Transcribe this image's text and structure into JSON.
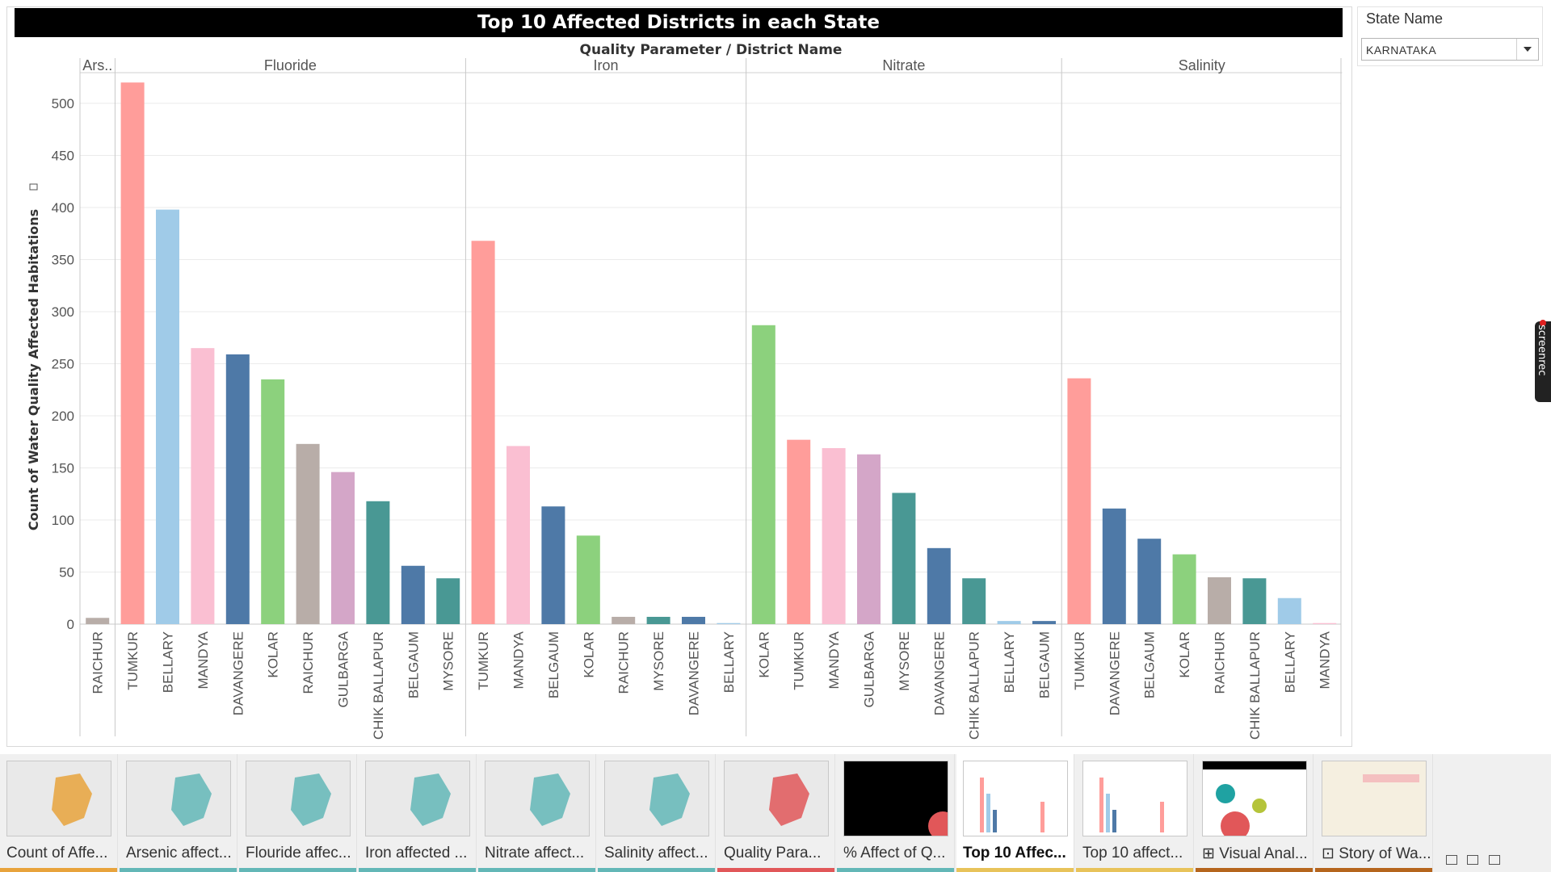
{
  "dashboard": {
    "title": "Top 10 Affected Districts in each State",
    "header_label": "Quality Parameter  /  District Name",
    "y_axis_label": "Count of Water Quality Affected Habitations",
    "filter_icon": "filter-icon"
  },
  "filter": {
    "title": "State Name",
    "selected": "KARNATAKA"
  },
  "chart_data": {
    "type": "bar",
    "title": "Top 10 Affected Districts in each State",
    "xlabel": "Quality Parameter  /  District Name",
    "ylabel": "Count of Water Quality Affected Habitations",
    "ylim": [
      0,
      540
    ],
    "yticks": [
      0,
      50,
      100,
      150,
      200,
      250,
      300,
      350,
      400,
      450,
      500
    ],
    "grid": true,
    "legend": "none",
    "panels": [
      {
        "name": "Ars..",
        "bars": [
          {
            "district": "RAICHUR",
            "value": 6,
            "color": "#b8ada8"
          }
        ]
      },
      {
        "name": "Fluoride",
        "bars": [
          {
            "district": "TUMKUR",
            "value": 520,
            "color": "#ff9d9a"
          },
          {
            "district": "BELLARY",
            "value": 398,
            "color": "#a0cbe8"
          },
          {
            "district": "MANDYA",
            "value": 265,
            "color": "#fabfd2"
          },
          {
            "district": "DAVANGERE",
            "value": 259,
            "color": "#4e79a7"
          },
          {
            "district": "KOLAR",
            "value": 235,
            "color": "#8cd17d"
          },
          {
            "district": "RAICHUR",
            "value": 173,
            "color": "#b8ada8"
          },
          {
            "district": "GULBARGA",
            "value": 146,
            "color": "#d4a6c8"
          },
          {
            "district": "CHIK BALLAPUR",
            "value": 118,
            "color": "#499894"
          },
          {
            "district": "BELGAUM",
            "value": 56,
            "color": "#4e79a7"
          },
          {
            "district": "MYSORE",
            "value": 44,
            "color": "#499894"
          }
        ]
      },
      {
        "name": "Iron",
        "bars": [
          {
            "district": "TUMKUR",
            "value": 368,
            "color": "#ff9d9a"
          },
          {
            "district": "MANDYA",
            "value": 171,
            "color": "#fabfd2"
          },
          {
            "district": "BELGAUM",
            "value": 113,
            "color": "#4e79a7"
          },
          {
            "district": "KOLAR",
            "value": 85,
            "color": "#8cd17d"
          },
          {
            "district": "RAICHUR",
            "value": 7,
            "color": "#b8ada8"
          },
          {
            "district": "MYSORE",
            "value": 7,
            "color": "#499894"
          },
          {
            "district": "DAVANGERE",
            "value": 7,
            "color": "#4e79a7"
          },
          {
            "district": "BELLARY",
            "value": 1,
            "color": "#a0cbe8"
          }
        ]
      },
      {
        "name": "Nitrate",
        "bars": [
          {
            "district": "KOLAR",
            "value": 287,
            "color": "#8cd17d"
          },
          {
            "district": "TUMKUR",
            "value": 177,
            "color": "#ff9d9a"
          },
          {
            "district": "MANDYA",
            "value": 169,
            "color": "#fabfd2"
          },
          {
            "district": "GULBARGA",
            "value": 163,
            "color": "#d4a6c8"
          },
          {
            "district": "MYSORE",
            "value": 126,
            "color": "#499894"
          },
          {
            "district": "DAVANGERE",
            "value": 73,
            "color": "#4e79a7"
          },
          {
            "district": "CHIK BALLAPUR",
            "value": 44,
            "color": "#499894"
          },
          {
            "district": "BELLARY",
            "value": 3,
            "color": "#a0cbe8"
          },
          {
            "district": "BELGAUM",
            "value": 3,
            "color": "#4e79a7"
          }
        ]
      },
      {
        "name": "Salinity",
        "bars": [
          {
            "district": "TUMKUR",
            "value": 236,
            "color": "#ff9d9a"
          },
          {
            "district": "DAVANGERE",
            "value": 111,
            "color": "#4e79a7"
          },
          {
            "district": "BELGAUM",
            "value": 82,
            "color": "#4e79a7"
          },
          {
            "district": "KOLAR",
            "value": 67,
            "color": "#8cd17d"
          },
          {
            "district": "RAICHUR",
            "value": 45,
            "color": "#b8ada8"
          },
          {
            "district": "CHIK BALLAPUR",
            "value": 44,
            "color": "#499894"
          },
          {
            "district": "BELLARY",
            "value": 25,
            "color": "#a0cbe8"
          },
          {
            "district": "MANDYA",
            "value": 1,
            "color": "#fabfd2"
          }
        ]
      }
    ]
  },
  "tabs": [
    {
      "label": "Count of Affe...",
      "color": "#e8a33c",
      "thumb": "map",
      "icon": ""
    },
    {
      "label": "Arsenic affect...",
      "color": "#63b7b7",
      "thumb": "map",
      "icon": ""
    },
    {
      "label": "Flouride affec...",
      "color": "#63b7b7",
      "thumb": "map",
      "icon": ""
    },
    {
      "label": "Iron affected ...",
      "color": "#63b7b7",
      "thumb": "map",
      "icon": ""
    },
    {
      "label": "Nitrate affect...",
      "color": "#63b7b7",
      "thumb": "map",
      "icon": ""
    },
    {
      "label": "Salinity affect...",
      "color": "#63b7b7",
      "thumb": "map",
      "icon": ""
    },
    {
      "label": "Quality Para...",
      "color": "#e15759",
      "thumb": "map",
      "icon": ""
    },
    {
      "label": "% Affect of Q...",
      "color": "#63b7b7",
      "thumb": "dark",
      "icon": ""
    },
    {
      "label": "Top 10 Affec...",
      "color": "#e8c35a",
      "thumb": "bars",
      "icon": ""
    },
    {
      "label": "Top 10 affect...",
      "color": "#e8c35a",
      "thumb": "bars2",
      "icon": ""
    },
    {
      "label": "Visual Anal...",
      "color": "#b5651d",
      "thumb": "dash",
      "icon": "⊞"
    },
    {
      "label": "Story of Wa...",
      "color": "#b5651d",
      "thumb": "story",
      "icon": "⊡"
    }
  ],
  "recorder_badge": "screenrec"
}
